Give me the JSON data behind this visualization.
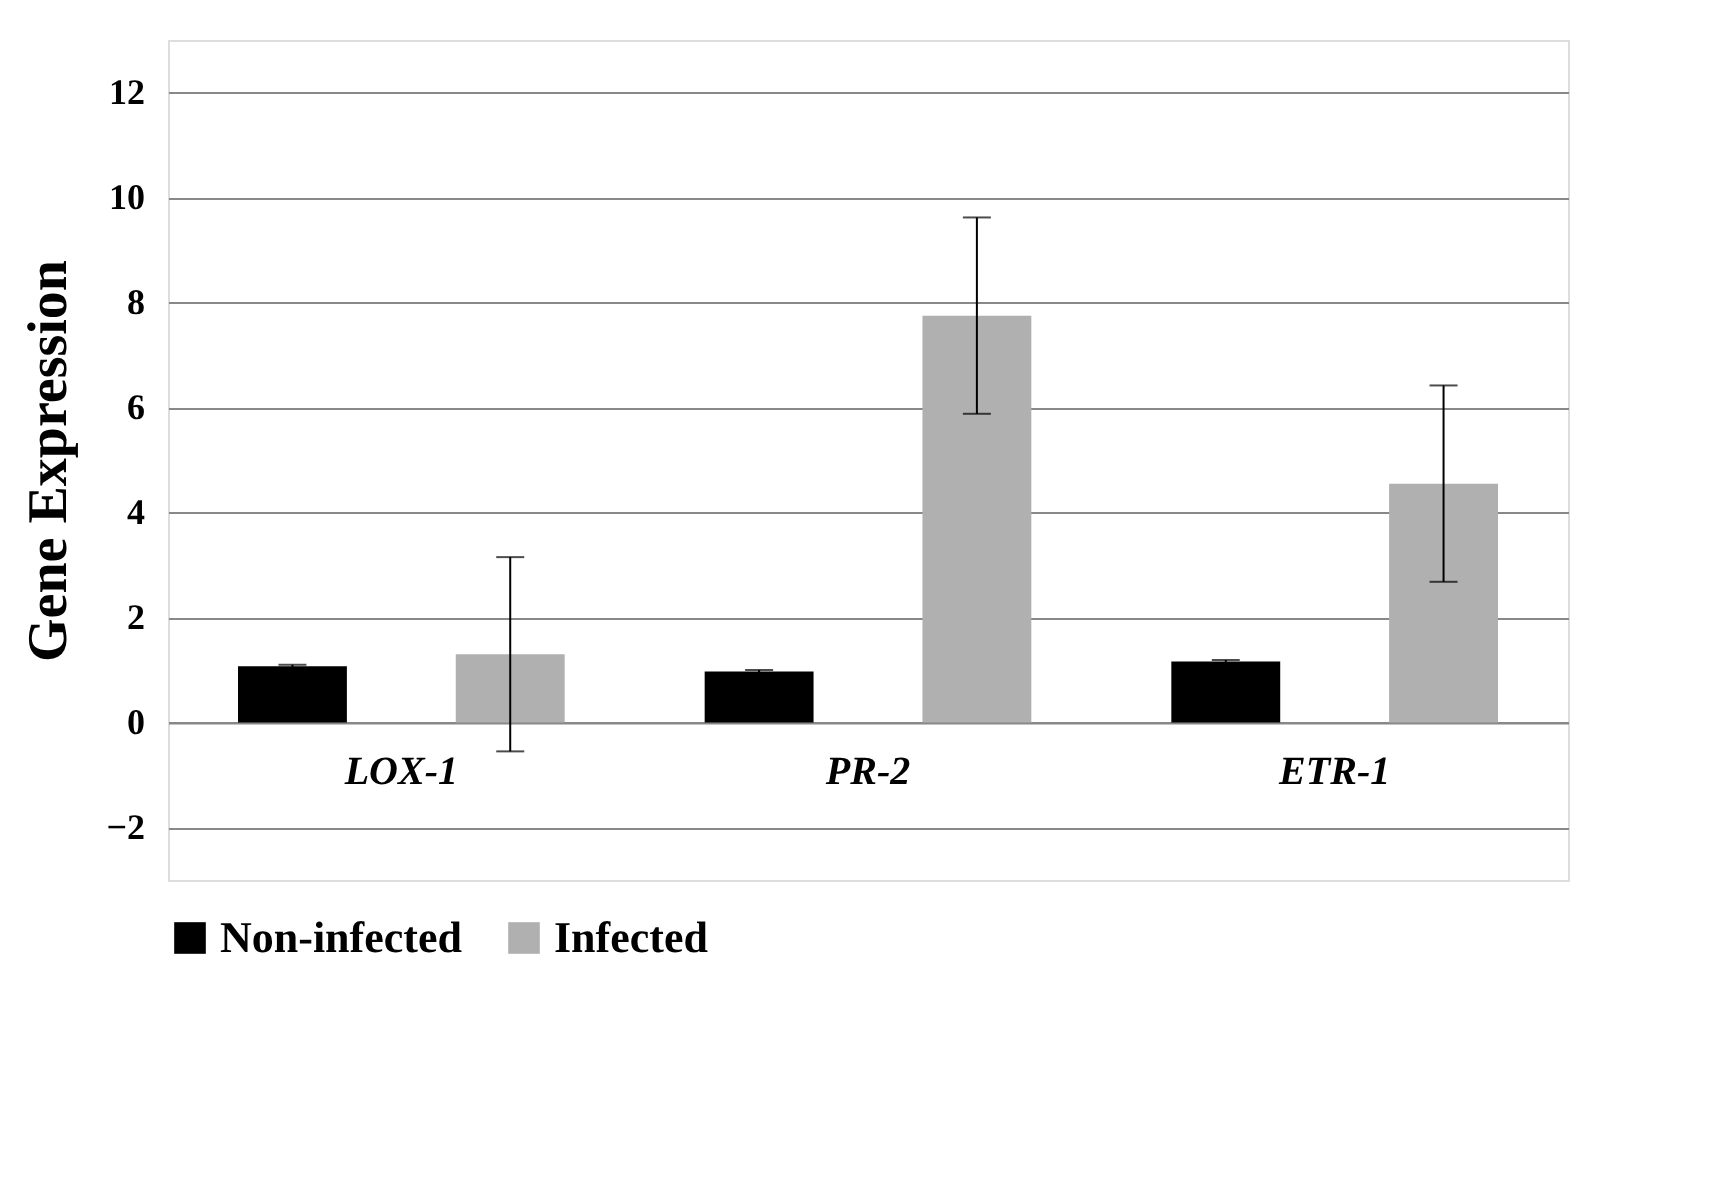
{
  "chart_data": {
    "type": "bar",
    "ylabel": "Gene Expression",
    "categories": [
      "LOX-1",
      "PR-2",
      "ETR-1"
    ],
    "series": [
      {
        "name": "Non-infected",
        "color": "#000000",
        "values": [
          1.07,
          0.97,
          1.16
        ],
        "errors": [
          0.03,
          0.03,
          0.03
        ]
      },
      {
        "name": "Infected",
        "color": "#b0b0b0",
        "values": [
          1.3,
          7.75,
          4.55
        ],
        "errors": [
          1.85,
          1.87,
          1.87
        ]
      }
    ],
    "ylim": [
      -3,
      13
    ],
    "yticks": [
      -2,
      0,
      2,
      4,
      6,
      8,
      10,
      12
    ],
    "grid": "y",
    "legend": "bottom"
  }
}
